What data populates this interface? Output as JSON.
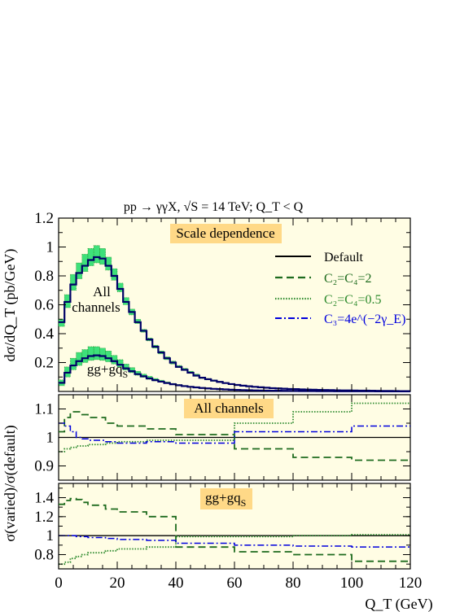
{
  "title": "pp → γγX, √S = 14 TeV; Q_T < Q",
  "xlabel": "Q_T (GeV)",
  "ylabel_top": "dσ/dQ_T (pb/GeV)",
  "ylabel_ratio": "σ(varied)/σ(default)",
  "colors": {
    "default": "#000000",
    "c2c4_2": "#1e6b1e",
    "c2c4_05": "#2d8a2d",
    "c3": "#0000dd",
    "band": "#3ee07a",
    "panel": "#fffde4",
    "labelbox": "#ffd987"
  },
  "legend": [
    {
      "key": "default",
      "label": "Default"
    },
    {
      "key": "c2c4_2",
      "label": "C₂=C₄=2"
    },
    {
      "key": "c2c4_05",
      "label": "C₂=C₄=0.5"
    },
    {
      "key": "c3",
      "label": "C₃=4e^(−2γ_E)"
    }
  ],
  "chart_data": [
    {
      "type": "histogram",
      "panel": "main",
      "label_box": "Scale dependence",
      "annotations": [
        "All",
        "channels",
        "gg+gq_S"
      ],
      "xlim": [
        0,
        120
      ],
      "ylim": [
        0,
        1.2
      ],
      "yticks": [
        "1.2",
        "1",
        "0.8",
        "0.6",
        "0.4",
        "0.2"
      ],
      "xticks": [
        "0",
        "20",
        "40",
        "60",
        "80",
        "100",
        "120"
      ],
      "bin_width": 2,
      "series": [
        {
          "name": "All channels",
          "default": [
            0.48,
            0.62,
            0.74,
            0.82,
            0.87,
            0.91,
            0.93,
            0.92,
            0.87,
            0.8,
            0.71,
            0.62,
            0.55,
            0.48,
            0.42,
            0.36,
            0.31,
            0.27,
            0.23,
            0.2,
            0.17,
            0.15,
            0.13,
            0.11,
            0.095,
            0.085,
            0.075,
            0.066,
            0.058,
            0.051,
            0.045,
            0.04,
            0.036,
            0.032,
            0.029,
            0.026,
            0.023,
            0.021,
            0.019,
            0.017,
            0.016,
            0.014,
            0.013,
            0.012,
            0.011,
            0.01,
            0.009,
            0.008,
            0.0075,
            0.007,
            0.0065,
            0.006,
            0.0055,
            0.005,
            0.0045,
            0.004,
            0.0035,
            0.003,
            0.0025,
            0.002
          ],
          "band_high": [
            0.5,
            0.67,
            0.81,
            0.89,
            0.95,
            0.99,
            1.01,
            0.99,
            0.93,
            0.85,
            0.75,
            0.65,
            0.57,
            0.5,
            0.43,
            0.37,
            0.32,
            0.28,
            0.24,
            0.21,
            0.18,
            0.16,
            0.14,
            0.12,
            0.1,
            0.09,
            0.08,
            0.07,
            0.061,
            0.054,
            0.048,
            0.043,
            0.038,
            0.034,
            0.031,
            0.028,
            0.025,
            0.023,
            0.021,
            0.019,
            0.017,
            0.015,
            0.014,
            0.013,
            0.012,
            0.011,
            0.01,
            0.009,
            0.008,
            0.0075,
            0.007,
            0.0065,
            0.006,
            0.0055,
            0.005,
            0.0045,
            0.004,
            0.0035,
            0.003,
            0.0025
          ],
          "band_low": [
            0.45,
            0.58,
            0.7,
            0.78,
            0.83,
            0.87,
            0.89,
            0.88,
            0.84,
            0.77,
            0.69,
            0.6,
            0.53,
            0.47,
            0.41,
            0.35,
            0.3,
            0.26,
            0.22,
            0.19,
            0.165,
            0.145,
            0.125,
            0.105,
            0.09,
            0.08,
            0.07,
            0.062,
            0.055,
            0.048,
            0.043,
            0.038,
            0.034,
            0.031,
            0.028,
            0.025,
            0.022,
            0.02,
            0.018,
            0.016,
            0.015,
            0.013,
            0.012,
            0.011,
            0.01,
            0.009,
            0.0085,
            0.0078,
            0.0072,
            0.0066,
            0.006,
            0.0055,
            0.005,
            0.0045,
            0.004,
            0.0035,
            0.003,
            0.0025,
            0.002,
            0.0015
          ]
        },
        {
          "name": "gg+gq_S",
          "default": [
            0.06,
            0.13,
            0.18,
            0.21,
            0.23,
            0.245,
            0.25,
            0.245,
            0.23,
            0.21,
            0.185,
            0.16,
            0.14,
            0.12,
            0.105,
            0.09,
            0.078,
            0.068,
            0.058,
            0.05,
            0.043,
            0.037,
            0.032,
            0.028,
            0.024,
            0.021,
            0.018,
            0.016,
            0.014,
            0.012,
            0.0105,
            0.0095,
            0.0085,
            0.0075,
            0.0068,
            0.006,
            0.0054,
            0.0048,
            0.0043,
            0.0038,
            0.0034,
            0.003,
            0.0027,
            0.0024,
            0.0022,
            0.002,
            0.0018,
            0.0016,
            0.0015,
            0.0014,
            0.0013,
            0.0012,
            0.0011,
            0.001,
            0.0009,
            0.0008,
            0.0007,
            0.0006,
            0.0005,
            0.0004
          ],
          "band_high": [
            0.08,
            0.17,
            0.23,
            0.27,
            0.29,
            0.31,
            0.31,
            0.3,
            0.28,
            0.25,
            0.22,
            0.19,
            0.165,
            0.14,
            0.12,
            0.105,
            0.09,
            0.078,
            0.066,
            0.056,
            0.048,
            0.041,
            0.035,
            0.03,
            0.026,
            0.023,
            0.02,
            0.017,
            0.015,
            0.013,
            0.011,
            0.01,
            0.009,
            0.008,
            0.0072,
            0.0064,
            0.0057,
            0.005,
            0.0045,
            0.004,
            0.0036,
            0.0032,
            0.0029,
            0.0026,
            0.0023,
            0.0021,
            0.0019,
            0.0017,
            0.0016,
            0.0015,
            0.0014,
            0.0013,
            0.0012,
            0.0011,
            0.001,
            0.0009,
            0.0008,
            0.0007,
            0.0006,
            0.0005
          ],
          "band_low": [
            0.04,
            0.1,
            0.15,
            0.18,
            0.2,
            0.215,
            0.22,
            0.215,
            0.205,
            0.19,
            0.17,
            0.148,
            0.13,
            0.112,
            0.098,
            0.084,
            0.073,
            0.064,
            0.055,
            0.047,
            0.041,
            0.035,
            0.03,
            0.026,
            0.022,
            0.019,
            0.017,
            0.015,
            0.013,
            0.011,
            0.0098,
            0.0088,
            0.0079,
            0.007,
            0.0063,
            0.0056,
            0.005,
            0.0045,
            0.004,
            0.0036,
            0.0032,
            0.0028,
            0.0025,
            0.0022,
            0.002,
            0.0018,
            0.0016,
            0.0015,
            0.0014,
            0.0013,
            0.0012,
            0.0011,
            0.001,
            0.0009,
            0.0008,
            0.0007,
            0.0006,
            0.0005,
            0.0004,
            0.0003
          ]
        }
      ]
    },
    {
      "type": "histogram",
      "panel": "ratio_all",
      "label_box": "All channels",
      "xlim": [
        0,
        120
      ],
      "ylim": [
        0.85,
        1.15
      ],
      "yticks": [
        "1.1",
        "1",
        "0.9"
      ],
      "reference": 1,
      "series": [
        {
          "key": "c2c4_2",
          "edges": [
            0,
            2,
            4,
            6,
            8,
            10,
            16,
            20,
            30,
            40,
            60,
            80,
            100,
            120
          ],
          "values": [
            1.02,
            1.07,
            1.09,
            1.09,
            1.08,
            1.07,
            1.05,
            1.04,
            1.03,
            1.01,
            0.96,
            0.93,
            0.92
          ]
        },
        {
          "key": "c2c4_05",
          "edges": [
            0,
            2,
            4,
            6,
            8,
            10,
            16,
            20,
            30,
            40,
            60,
            80,
            100,
            120
          ],
          "values": [
            0.95,
            0.96,
            0.965,
            0.97,
            0.97,
            0.975,
            0.98,
            0.985,
            0.99,
            0.99,
            1.05,
            1.09,
            1.12
          ]
        },
        {
          "key": "c3",
          "edges": [
            0,
            2,
            4,
            6,
            8,
            10,
            16,
            20,
            30,
            40,
            60,
            80,
            100,
            120
          ],
          "values": [
            1.05,
            1.04,
            1.02,
            1.0,
            0.995,
            0.99,
            0.985,
            0.98,
            0.985,
            0.98,
            1.02,
            1.02,
            1.04
          ]
        }
      ]
    },
    {
      "type": "histogram",
      "panel": "ratio_gg",
      "label_box": "gg+gq_S",
      "xlim": [
        0,
        120
      ],
      "ylim": [
        0.65,
        1.55
      ],
      "yticks": [
        "1.4",
        "1.2",
        "1",
        "0.8"
      ],
      "reference": 1,
      "series": [
        {
          "key": "c2c4_2",
          "edges": [
            0,
            2,
            4,
            6,
            8,
            10,
            16,
            20,
            30,
            40,
            60,
            80,
            100,
            120
          ],
          "values": [
            1.33,
            1.37,
            1.39,
            1.38,
            1.35,
            1.32,
            1.28,
            1.25,
            1.2,
            0.88,
            0.83,
            0.8,
            0.73
          ]
        },
        {
          "key": "c2c4_05",
          "edges": [
            0,
            2,
            4,
            6,
            8,
            10,
            16,
            20,
            30,
            40,
            60,
            80,
            100,
            120
          ],
          "values": [
            0.7,
            0.72,
            0.76,
            0.78,
            0.8,
            0.82,
            0.84,
            0.86,
            0.88,
            0.99,
            0.99,
            1.0,
            1.01
          ]
        },
        {
          "key": "c3",
          "edges": [
            0,
            2,
            4,
            6,
            8,
            10,
            16,
            20,
            30,
            40,
            60,
            80,
            100,
            120
          ],
          "values": [
            1.0,
            1.0,
            1.0,
            0.99,
            0.99,
            0.98,
            0.97,
            0.96,
            0.95,
            0.92,
            0.9,
            0.89,
            0.88
          ]
        }
      ]
    }
  ]
}
